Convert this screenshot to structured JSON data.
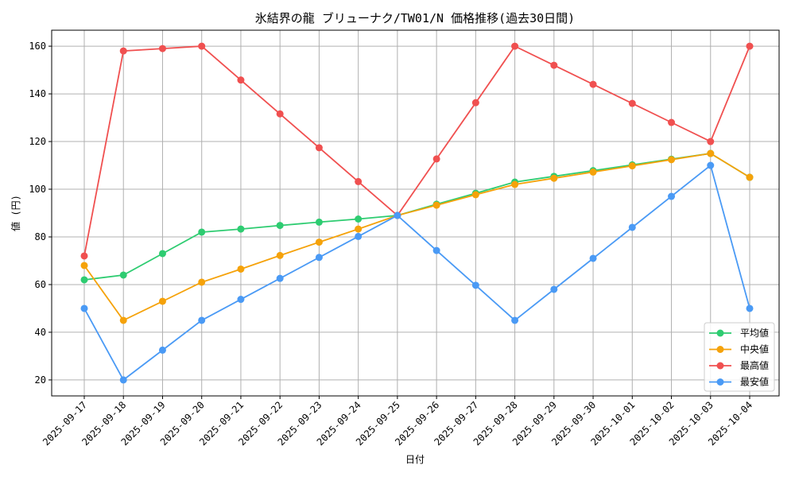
{
  "chart_data": {
    "type": "line",
    "title": "氷結界の龍 ブリューナク/TW01/N 価格推移(過去30日間)",
    "xlabel": "日付",
    "ylabel": "値 (円)",
    "ylim": [
      13.3,
      166.7
    ],
    "yticks": [
      20,
      40,
      60,
      80,
      100,
      120,
      140,
      160
    ],
    "grid": true,
    "legend_position": "bottom-right",
    "categories": [
      "2025-09-17",
      "2025-09-18",
      "2025-09-19",
      "2025-09-20",
      "2025-09-21",
      "2025-09-22",
      "2025-09-23",
      "2025-09-24",
      "2025-09-25",
      "2025-09-26",
      "2025-09-27",
      "2025-09-28",
      "2025-09-29",
      "2025-09-30",
      "2025-10-01",
      "2025-10-02",
      "2025-10-03",
      "2025-10-04"
    ],
    "series": [
      {
        "name": "平均値",
        "color": "#2ecc71",
        "values": [
          62,
          64,
          73,
          82,
          83.3,
          84.8,
          86.2,
          87.5,
          89,
          93.7,
          98.3,
          103,
          105.4,
          107.8,
          110.2,
          112.6,
          115,
          105
        ]
      },
      {
        "name": "中央値",
        "color": "#f5a20a",
        "values": [
          68,
          45,
          53,
          61,
          66.5,
          72.2,
          77.8,
          83.3,
          89,
          93.3,
          97.7,
          102,
          104.6,
          107.2,
          109.8,
          112.4,
          115,
          105
        ]
      },
      {
        "name": "最高値",
        "color": "#f05050",
        "values": [
          72,
          158,
          159,
          160,
          145.8,
          131.6,
          117.4,
          103.2,
          89,
          112.7,
          136.3,
          160,
          152,
          144,
          136,
          128,
          120,
          160
        ]
      },
      {
        "name": "最安値",
        "color": "#4a9af5",
        "values": [
          50,
          20,
          32.5,
          45,
          53.8,
          62.6,
          71.4,
          80.2,
          89,
          74.3,
          59.7,
          45,
          58,
          71,
          84,
          97,
          110,
          50
        ]
      }
    ]
  }
}
